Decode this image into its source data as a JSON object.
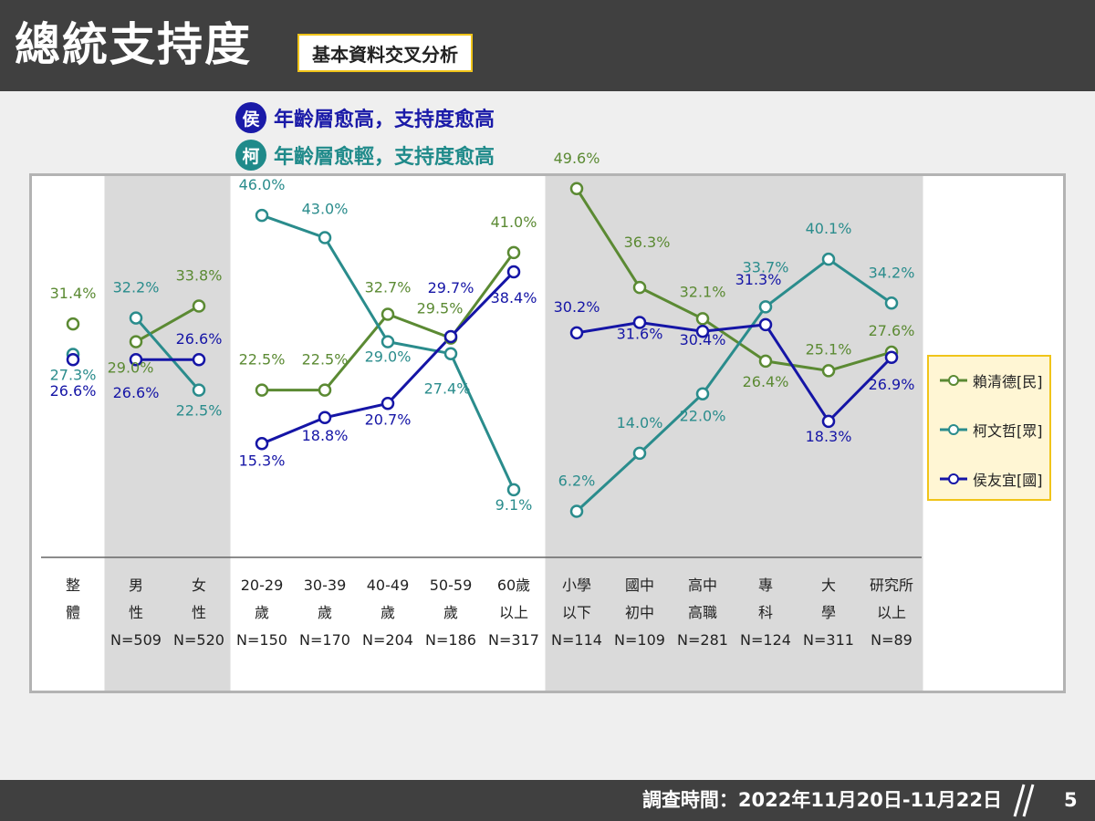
{
  "header": {
    "title": "總統支持度",
    "subtitle": "基本資料交叉分析"
  },
  "notes": [
    {
      "badge": "侯",
      "text": "年齡層愈高，支持度愈高"
    },
    {
      "badge": "柯",
      "text": "年齡層愈輕，支持度愈高"
    }
  ],
  "footer": {
    "survey_time": "調查時間：2022年11月20日-11月22日",
    "page": "5"
  },
  "colors": {
    "lai": "#5b8a33",
    "ko": "#2a8c8c",
    "hou": "#1515a6"
  },
  "chart_data": {
    "type": "line",
    "categories": [
      [
        "整",
        "體",
        ""
      ],
      [
        "男",
        "性",
        "N=509"
      ],
      [
        "女",
        "性",
        "N=520"
      ],
      [
        "20-29",
        "歲",
        "N=150"
      ],
      [
        "30-39",
        "歲",
        "N=170"
      ],
      [
        "40-49",
        "歲",
        "N=204"
      ],
      [
        "50-59",
        "歲",
        "N=186"
      ],
      [
        "60歲",
        "以上",
        "N=317"
      ],
      [
        "小學",
        "以下",
        "N=114"
      ],
      [
        "國中",
        "初中",
        "N=109"
      ],
      [
        "高中",
        "高職",
        "N=281"
      ],
      [
        "專",
        "科",
        "N=124"
      ],
      [
        "大",
        "學",
        "N=311"
      ],
      [
        "研究所",
        "以上",
        "N=89"
      ]
    ],
    "groups": [
      [
        0
      ],
      [
        1,
        2
      ],
      [
        3,
        4,
        5,
        6,
        7
      ],
      [
        8,
        9,
        10,
        11,
        12,
        13
      ]
    ],
    "series": [
      {
        "name": "賴清德[民]",
        "key": "lai",
        "values": [
          31.4,
          29.0,
          33.8,
          22.5,
          22.5,
          32.7,
          29.5,
          41.0,
          49.6,
          36.3,
          32.1,
          26.4,
          25.1,
          27.6
        ]
      },
      {
        "name": "柯文哲[眾]",
        "key": "ko",
        "values": [
          27.3,
          32.2,
          22.5,
          46.0,
          43.0,
          29.0,
          27.4,
          9.1,
          6.2,
          14.0,
          22.0,
          33.7,
          40.1,
          34.2
        ]
      },
      {
        "name": "侯友宜[國]",
        "key": "hou",
        "values": [
          26.6,
          26.6,
          26.6,
          15.3,
          18.8,
          20.7,
          29.7,
          38.4,
          30.2,
          31.6,
          30.4,
          31.3,
          18.3,
          26.9
        ]
      }
    ],
    "ylim": [
      0,
      55
    ]
  }
}
